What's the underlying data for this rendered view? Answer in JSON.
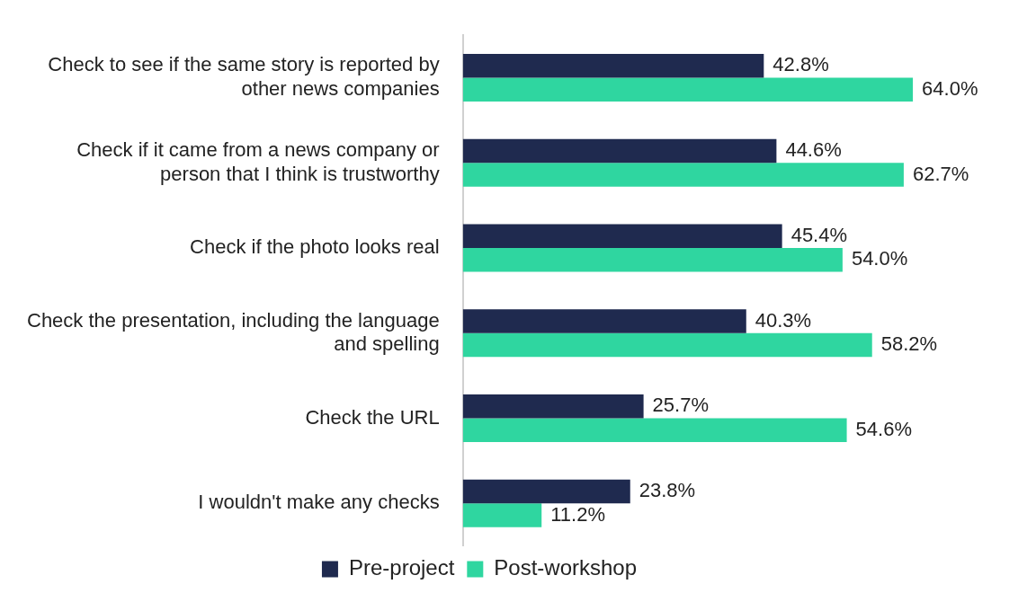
{
  "chart_data": {
    "type": "bar",
    "orientation": "horizontal",
    "categories": [
      "Check to see if the same story is reported by other news companies",
      "Check if it came from a news company or person that I think is trustworthy",
      "Check if the photo looks real",
      "Check the presentation, including the language and spelling",
      "Check the URL",
      "I wouldn't make any checks"
    ],
    "series": [
      {
        "name": "Pre-project",
        "color": "#1f2a4f",
        "values": [
          42.8,
          44.6,
          45.4,
          40.3,
          25.7,
          23.8
        ],
        "value_labels": [
          "42.8%",
          "44.6%",
          "45.4%",
          "40.3%",
          "25.7%",
          "23.8%"
        ]
      },
      {
        "name": "Post-workshop",
        "color": "#2fd6a0",
        "values": [
          64.0,
          62.7,
          54.0,
          58.2,
          54.6,
          11.2
        ],
        "value_labels": [
          "64.0%",
          "62.7%",
          "54.0%",
          "58.2%",
          "54.6%",
          "11.2%"
        ]
      }
    ],
    "grid": false,
    "legend": "bottom",
    "tick_labels": "y"
  }
}
